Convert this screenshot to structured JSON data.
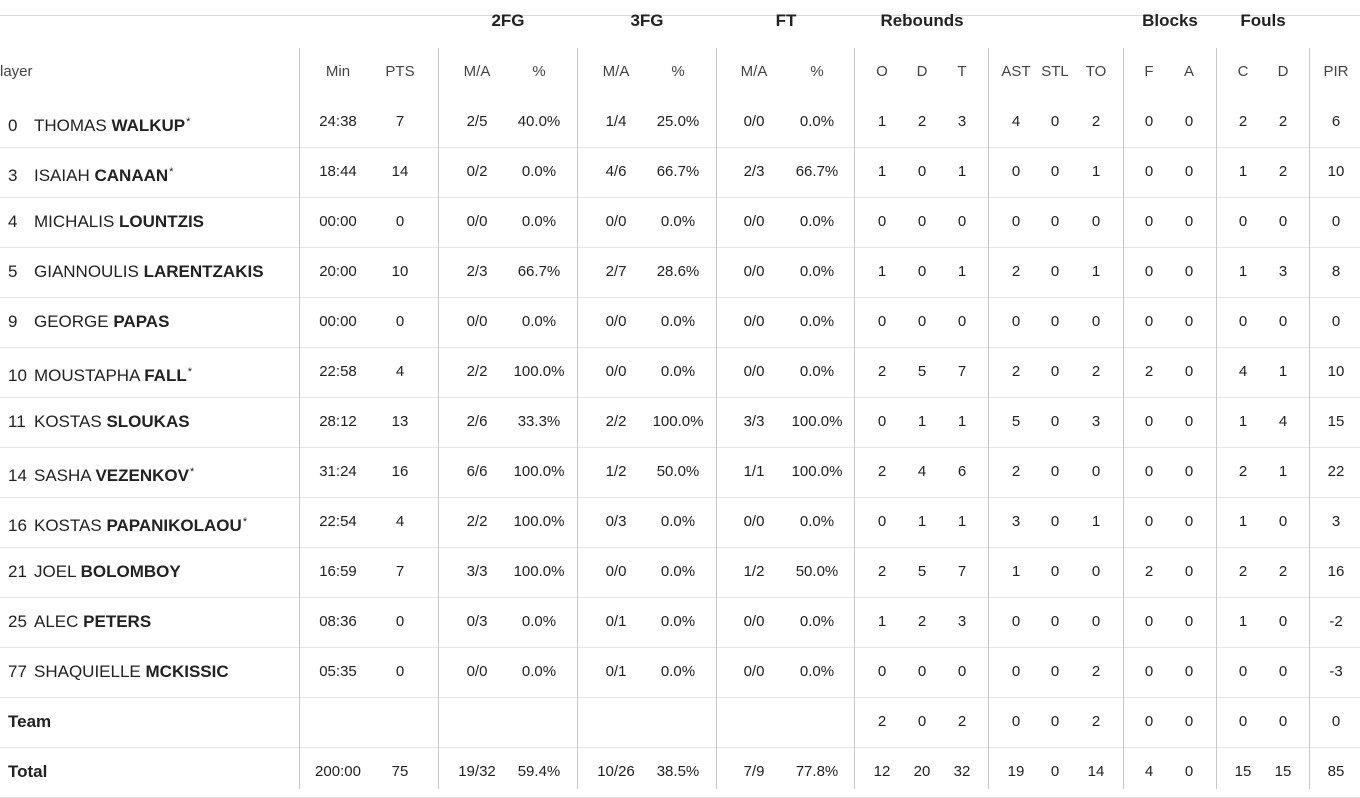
{
  "groups": {
    "twofg": "2FG",
    "threefg": "3FG",
    "ft": "FT",
    "rebounds": "Rebounds",
    "blocks": "Blocks",
    "fouls": "Fouls"
  },
  "headers": {
    "player": "layer",
    "min": "Min",
    "pts": "PTS",
    "fg2_ma": "M/A",
    "fg2_pct": "%",
    "fg3_ma": "M/A",
    "fg3_pct": "%",
    "ft_ma": "M/A",
    "ft_pct": "%",
    "o": "O",
    "d": "D",
    "t": "T",
    "ast": "AST",
    "stl": "STL",
    "to": "TO",
    "bf": "F",
    "ba": "A",
    "fc": "C",
    "fd": "D",
    "pir": "PIR"
  },
  "players": [
    {
      "num": "0",
      "first": "THOMAS",
      "last": "WALKUP",
      "star": "*",
      "min": "24:38",
      "pts": "7",
      "fg2": "2/5",
      "fg2p": "40.0%",
      "fg3": "1/4",
      "fg3p": "25.0%",
      "ft": "0/0",
      "ftp": "0.0%",
      "o": "1",
      "d": "2",
      "t": "3",
      "ast": "4",
      "stl": "0",
      "to": "2",
      "bf": "0",
      "ba": "0",
      "fc": "2",
      "fd": "2",
      "pir": "6"
    },
    {
      "num": "3",
      "first": "ISAIAH",
      "last": "CANAAN",
      "star": "*",
      "min": "18:44",
      "pts": "14",
      "fg2": "0/2",
      "fg2p": "0.0%",
      "fg3": "4/6",
      "fg3p": "66.7%",
      "ft": "2/3",
      "ftp": "66.7%",
      "o": "1",
      "d": "0",
      "t": "1",
      "ast": "0",
      "stl": "0",
      "to": "1",
      "bf": "0",
      "ba": "0",
      "fc": "1",
      "fd": "2",
      "pir": "10"
    },
    {
      "num": "4",
      "first": "MICHALIS",
      "last": "LOUNTZIS",
      "star": "",
      "min": "00:00",
      "pts": "0",
      "fg2": "0/0",
      "fg2p": "0.0%",
      "fg3": "0/0",
      "fg3p": "0.0%",
      "ft": "0/0",
      "ftp": "0.0%",
      "o": "0",
      "d": "0",
      "t": "0",
      "ast": "0",
      "stl": "0",
      "to": "0",
      "bf": "0",
      "ba": "0",
      "fc": "0",
      "fd": "0",
      "pir": "0"
    },
    {
      "num": "5",
      "first": "GIANNOULIS",
      "last": "LARENTZAKIS",
      "star": "",
      "min": "20:00",
      "pts": "10",
      "fg2": "2/3",
      "fg2p": "66.7%",
      "fg3": "2/7",
      "fg3p": "28.6%",
      "ft": "0/0",
      "ftp": "0.0%",
      "o": "1",
      "d": "0",
      "t": "1",
      "ast": "2",
      "stl": "0",
      "to": "1",
      "bf": "0",
      "ba": "0",
      "fc": "1",
      "fd": "3",
      "pir": "8"
    },
    {
      "num": "9",
      "first": "GEORGE",
      "last": "PAPAS",
      "star": "",
      "min": "00:00",
      "pts": "0",
      "fg2": "0/0",
      "fg2p": "0.0%",
      "fg3": "0/0",
      "fg3p": "0.0%",
      "ft": "0/0",
      "ftp": "0.0%",
      "o": "0",
      "d": "0",
      "t": "0",
      "ast": "0",
      "stl": "0",
      "to": "0",
      "bf": "0",
      "ba": "0",
      "fc": "0",
      "fd": "0",
      "pir": "0"
    },
    {
      "num": "10",
      "first": "MOUSTAPHA",
      "last": "FALL",
      "star": "*",
      "min": "22:58",
      "pts": "4",
      "fg2": "2/2",
      "fg2p": "100.0%",
      "fg3": "0/0",
      "fg3p": "0.0%",
      "ft": "0/0",
      "ftp": "0.0%",
      "o": "2",
      "d": "5",
      "t": "7",
      "ast": "2",
      "stl": "0",
      "to": "2",
      "bf": "2",
      "ba": "0",
      "fc": "4",
      "fd": "1",
      "pir": "10"
    },
    {
      "num": "11",
      "first": "KOSTAS",
      "last": "SLOUKAS",
      "star": "",
      "min": "28:12",
      "pts": "13",
      "fg2": "2/6",
      "fg2p": "33.3%",
      "fg3": "2/2",
      "fg3p": "100.0%",
      "ft": "3/3",
      "ftp": "100.0%",
      "o": "0",
      "d": "1",
      "t": "1",
      "ast": "5",
      "stl": "0",
      "to": "3",
      "bf": "0",
      "ba": "0",
      "fc": "1",
      "fd": "4",
      "pir": "15"
    },
    {
      "num": "14",
      "first": "SASHA",
      "last": "VEZENKOV",
      "star": "*",
      "min": "31:24",
      "pts": "16",
      "fg2": "6/6",
      "fg2p": "100.0%",
      "fg3": "1/2",
      "fg3p": "50.0%",
      "ft": "1/1",
      "ftp": "100.0%",
      "o": "2",
      "d": "4",
      "t": "6",
      "ast": "2",
      "stl": "0",
      "to": "0",
      "bf": "0",
      "ba": "0",
      "fc": "2",
      "fd": "1",
      "pir": "22"
    },
    {
      "num": "16",
      "first": "KOSTAS",
      "last": "PAPANIKOLAOU",
      "star": "*",
      "min": "22:54",
      "pts": "4",
      "fg2": "2/2",
      "fg2p": "100.0%",
      "fg3": "0/3",
      "fg3p": "0.0%",
      "ft": "0/0",
      "ftp": "0.0%",
      "o": "0",
      "d": "1",
      "t": "1",
      "ast": "3",
      "stl": "0",
      "to": "1",
      "bf": "0",
      "ba": "0",
      "fc": "1",
      "fd": "0",
      "pir": "3"
    },
    {
      "num": "21",
      "first": "JOEL",
      "last": "BOLOMBOY",
      "star": "",
      "min": "16:59",
      "pts": "7",
      "fg2": "3/3",
      "fg2p": "100.0%",
      "fg3": "0/0",
      "fg3p": "0.0%",
      "ft": "1/2",
      "ftp": "50.0%",
      "o": "2",
      "d": "5",
      "t": "7",
      "ast": "1",
      "stl": "0",
      "to": "0",
      "bf": "2",
      "ba": "0",
      "fc": "2",
      "fd": "2",
      "pir": "16"
    },
    {
      "num": "25",
      "first": "ALEC",
      "last": "PETERS",
      "star": "",
      "min": "08:36",
      "pts": "0",
      "fg2": "0/3",
      "fg2p": "0.0%",
      "fg3": "0/1",
      "fg3p": "0.0%",
      "ft": "0/0",
      "ftp": "0.0%",
      "o": "1",
      "d": "2",
      "t": "3",
      "ast": "0",
      "stl": "0",
      "to": "0",
      "bf": "0",
      "ba": "0",
      "fc": "1",
      "fd": "0",
      "pir": "-2"
    },
    {
      "num": "77",
      "first": "SHAQUIELLE",
      "last": "MCKISSIC",
      "star": "",
      "min": "05:35",
      "pts": "0",
      "fg2": "0/0",
      "fg2p": "0.0%",
      "fg3": "0/1",
      "fg3p": "0.0%",
      "ft": "0/0",
      "ftp": "0.0%",
      "o": "0",
      "d": "0",
      "t": "0",
      "ast": "0",
      "stl": "0",
      "to": "2",
      "bf": "0",
      "ba": "0",
      "fc": "0",
      "fd": "0",
      "pir": "-3"
    }
  ],
  "team": {
    "label": "Team",
    "min": "",
    "pts": "",
    "fg2": "",
    "fg2p": "",
    "fg3": "",
    "fg3p": "",
    "ft": "",
    "ftp": "",
    "o": "2",
    "d": "0",
    "t": "2",
    "ast": "0",
    "stl": "0",
    "to": "2",
    "bf": "0",
    "ba": "0",
    "fc": "0",
    "fd": "0",
    "pir": "0"
  },
  "total": {
    "label": "Total",
    "min": "200:00",
    "pts": "75",
    "fg2": "19/32",
    "fg2p": "59.4%",
    "fg3": "10/26",
    "fg3p": "38.5%",
    "ft": "7/9",
    "ftp": "77.8%",
    "o": "12",
    "d": "20",
    "t": "32",
    "ast": "19",
    "stl": "0",
    "to": "14",
    "bf": "4",
    "ba": "0",
    "fc": "15",
    "fd": "15",
    "pir": "85"
  }
}
